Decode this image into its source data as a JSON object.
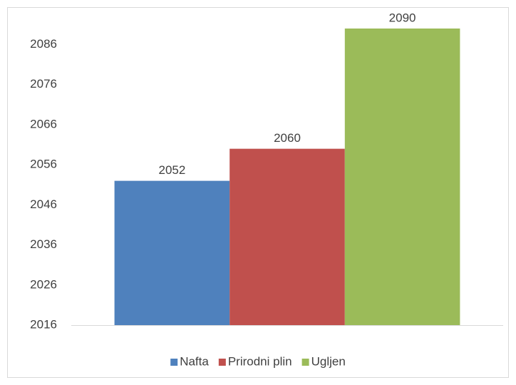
{
  "chart_data": {
    "type": "bar",
    "categories": [
      null
    ],
    "series": [
      {
        "name": "Nafta",
        "color": "#4f81bd",
        "values": [
          2052
        ]
      },
      {
        "name": "Prirodni plin",
        "color": "#c0504d",
        "values": [
          2060
        ]
      },
      {
        "name": "Ugljen",
        "color": "#9bbb59",
        "values": [
          2090
        ]
      }
    ],
    "ylim": [
      2016,
      2090
    ],
    "yticks": [
      2016,
      2026,
      2036,
      2046,
      2056,
      2066,
      2076,
      2086
    ],
    "grid": false,
    "legend": "bottom",
    "data_labels": true
  }
}
